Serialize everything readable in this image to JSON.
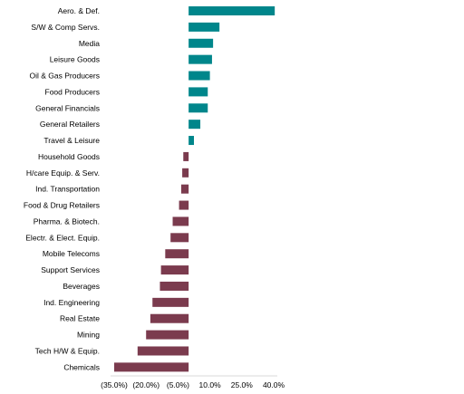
{
  "chart_data": {
    "type": "bar",
    "orientation": "horizontal",
    "categories": [
      "Aero. & Def.",
      "S/W & Comp Servs.",
      "Media",
      "Leisure Goods",
      "Oil & Gas Producers",
      "Food Producers",
      "General Financials",
      "General Retailers",
      "Travel & Leisure",
      "Household Goods",
      "H/care Equip. & Serv.",
      "Ind. Transportation",
      "Food & Drug Retailers",
      "Pharma. & Biotech.",
      "Electr. & Elect. Equip.",
      "Mobile Telecoms",
      "Support Services",
      "Beverages",
      "Ind. Engineering",
      "Real Estate",
      "Mining",
      "Tech H/W & Equip.",
      "Chemicals"
    ],
    "values": [
      40.5,
      14.5,
      11.5,
      11.0,
      10.0,
      9.0,
      9.0,
      5.5,
      2.5,
      -2.5,
      -3.0,
      -3.5,
      -4.5,
      -7.5,
      -8.5,
      -11.0,
      -13.0,
      -13.5,
      -17.0,
      -18.0,
      -20.0,
      -24.0,
      -35.0
    ],
    "xlim": [
      -35,
      40
    ],
    "x_ticks": [
      -35,
      -20,
      -5,
      10,
      25,
      40
    ],
    "x_tick_labels": [
      "(35.0%)",
      "(20.0%)",
      "(5.0%)",
      "10.0%",
      "25.0%",
      "40.0%"
    ],
    "colors": {
      "positive": "#00868B",
      "negative": "#7B3B4E"
    },
    "title": "",
    "xlabel": "",
    "ylabel": "",
    "grid": false,
    "legend": "none"
  }
}
